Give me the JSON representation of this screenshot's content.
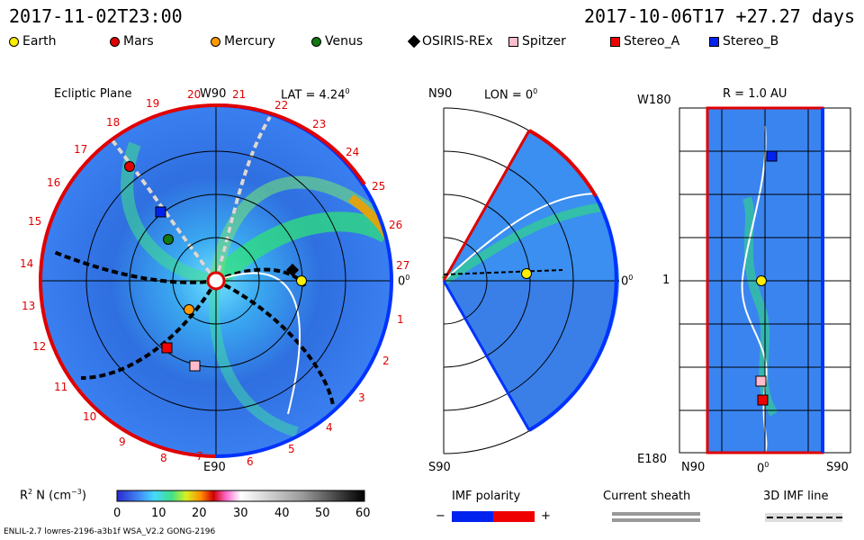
{
  "header": {
    "left_time": "2017-11-02T23:00",
    "right_time": "2017-10-06T17 +27.27 days"
  },
  "legend": [
    {
      "name": "Earth",
      "color": "#ffee00",
      "shape": "circle"
    },
    {
      "name": "Mars",
      "color": "#e00000",
      "shape": "circle"
    },
    {
      "name": "Mercury",
      "color": "#ff9900",
      "shape": "circle"
    },
    {
      "name": "Venus",
      "color": "#117711",
      "shape": "circle"
    },
    {
      "name": "OSIRIS-REx",
      "color": "#000000",
      "shape": "diamond"
    },
    {
      "name": "Spitzer",
      "color": "#ffbbcc",
      "shape": "square"
    },
    {
      "name": "Stereo_A",
      "color": "#ee0000",
      "shape": "square"
    },
    {
      "name": "Stereo_B",
      "color": "#0022ee",
      "shape": "square"
    }
  ],
  "panels": {
    "ecliptic": {
      "title": "Ecliptic Plane",
      "top_label": "W90",
      "lat": "LAT = 4.24",
      "lat_deg": "0",
      "bottom_label": "E90",
      "zero_label": "0",
      "zero_deg": "0",
      "ticks": [
        "1",
        "2",
        "3",
        "4",
        "5",
        "6",
        "7",
        "8",
        "9",
        "10",
        "11",
        "12",
        "13",
        "14",
        "15",
        "16",
        "17",
        "18",
        "19",
        "20",
        "21",
        "22",
        "23",
        "24",
        "25",
        "26",
        "27"
      ]
    },
    "meridional": {
      "top_label": "N90",
      "lon": "LON = 0",
      "lon_deg": "0",
      "zero_label": "0",
      "zero_deg": "0",
      "bottom_label": "S90"
    },
    "radial": {
      "title": "R = 1.0 AU",
      "top_left": "W180",
      "mid_left": "1",
      "bottom_left": "E180",
      "x_left": "N90",
      "x_mid": "0",
      "x_mid_deg": "0",
      "x_right": "S90"
    }
  },
  "colorbar": {
    "label_pre": "R",
    "label_sup": "2",
    "label_mid": " N (cm",
    "label_sup2": "−3",
    "label_post": ")",
    "ticks": [
      "0",
      "10",
      "20",
      "30",
      "40",
      "50",
      "60"
    ]
  },
  "imf": {
    "title": "IMF polarity",
    "minus": "−",
    "plus": "+",
    "sheath_title": "Current sheath",
    "line_title": "3D IMF line"
  },
  "footer": "ENLIL-2.7 lowres-2196-a3b1f WSA_V2.2 GONG-2196"
}
